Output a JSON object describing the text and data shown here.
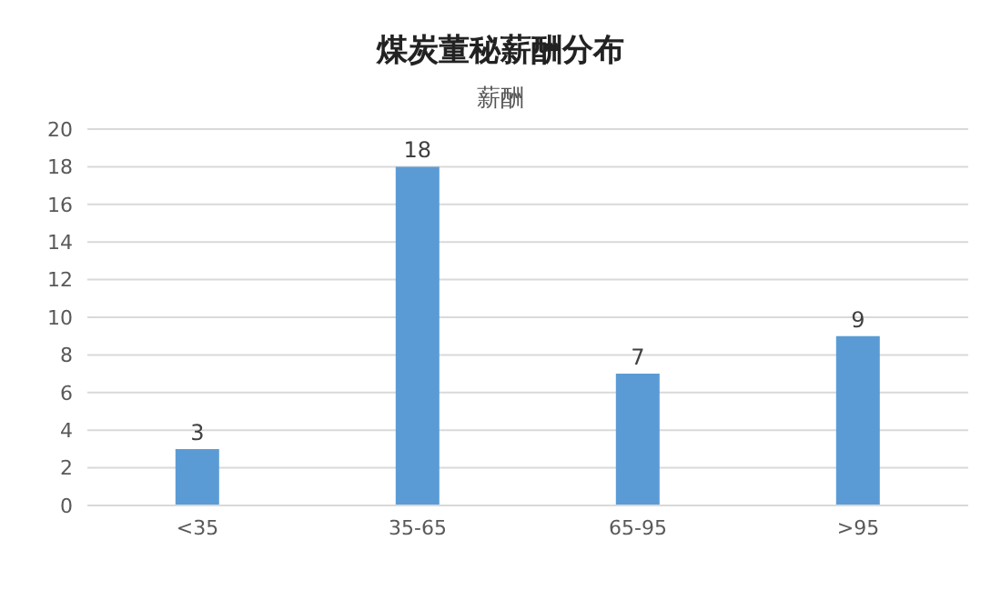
{
  "chart_data": {
    "type": "bar",
    "title": "煤炭董秘薪酬分布",
    "subtitle": "薪酬",
    "categories": [
      "<35",
      "35-65",
      "65-95",
      ">95"
    ],
    "values": [
      3,
      18,
      7,
      9
    ],
    "color": "#5b9bd5",
    "ylim": [
      0,
      20
    ],
    "yticks": [
      0,
      2,
      4,
      6,
      8,
      10,
      12,
      14,
      16,
      18,
      20
    ],
    "grid": "y",
    "data_labels": true
  }
}
